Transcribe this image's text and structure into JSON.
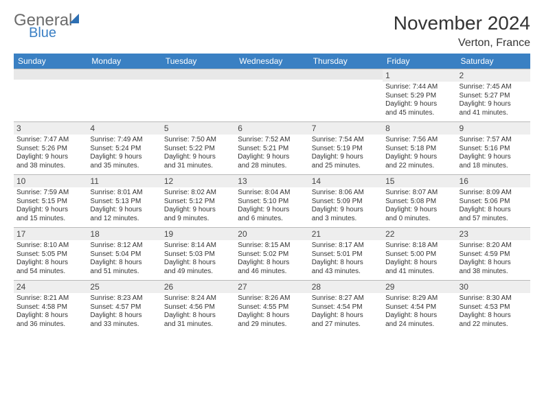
{
  "logo": {
    "line1": "General",
    "line2": "Blue"
  },
  "title": "November 2024",
  "location": "Verton, France",
  "day_headers": [
    "Sunday",
    "Monday",
    "Tuesday",
    "Wednesday",
    "Thursday",
    "Friday",
    "Saturday"
  ],
  "colors": {
    "header_bg": "#3a80c3",
    "header_text": "#ffffff",
    "daynum_bg": "#eeeeee",
    "border": "#b8b8b8",
    "text": "#333333",
    "logo_gray": "#6b6b6b",
    "logo_blue": "#3a7fc4"
  },
  "weeks": [
    [
      null,
      null,
      null,
      null,
      null,
      {
        "n": "1",
        "sr": "Sunrise: 7:44 AM",
        "ss": "Sunset: 5:29 PM",
        "d1": "Daylight: 9 hours",
        "d2": "and 45 minutes."
      },
      {
        "n": "2",
        "sr": "Sunrise: 7:45 AM",
        "ss": "Sunset: 5:27 PM",
        "d1": "Daylight: 9 hours",
        "d2": "and 41 minutes."
      }
    ],
    [
      {
        "n": "3",
        "sr": "Sunrise: 7:47 AM",
        "ss": "Sunset: 5:26 PM",
        "d1": "Daylight: 9 hours",
        "d2": "and 38 minutes."
      },
      {
        "n": "4",
        "sr": "Sunrise: 7:49 AM",
        "ss": "Sunset: 5:24 PM",
        "d1": "Daylight: 9 hours",
        "d2": "and 35 minutes."
      },
      {
        "n": "5",
        "sr": "Sunrise: 7:50 AM",
        "ss": "Sunset: 5:22 PM",
        "d1": "Daylight: 9 hours",
        "d2": "and 31 minutes."
      },
      {
        "n": "6",
        "sr": "Sunrise: 7:52 AM",
        "ss": "Sunset: 5:21 PM",
        "d1": "Daylight: 9 hours",
        "d2": "and 28 minutes."
      },
      {
        "n": "7",
        "sr": "Sunrise: 7:54 AM",
        "ss": "Sunset: 5:19 PM",
        "d1": "Daylight: 9 hours",
        "d2": "and 25 minutes."
      },
      {
        "n": "8",
        "sr": "Sunrise: 7:56 AM",
        "ss": "Sunset: 5:18 PM",
        "d1": "Daylight: 9 hours",
        "d2": "and 22 minutes."
      },
      {
        "n": "9",
        "sr": "Sunrise: 7:57 AM",
        "ss": "Sunset: 5:16 PM",
        "d1": "Daylight: 9 hours",
        "d2": "and 18 minutes."
      }
    ],
    [
      {
        "n": "10",
        "sr": "Sunrise: 7:59 AM",
        "ss": "Sunset: 5:15 PM",
        "d1": "Daylight: 9 hours",
        "d2": "and 15 minutes."
      },
      {
        "n": "11",
        "sr": "Sunrise: 8:01 AM",
        "ss": "Sunset: 5:13 PM",
        "d1": "Daylight: 9 hours",
        "d2": "and 12 minutes."
      },
      {
        "n": "12",
        "sr": "Sunrise: 8:02 AM",
        "ss": "Sunset: 5:12 PM",
        "d1": "Daylight: 9 hours",
        "d2": "and 9 minutes."
      },
      {
        "n": "13",
        "sr": "Sunrise: 8:04 AM",
        "ss": "Sunset: 5:10 PM",
        "d1": "Daylight: 9 hours",
        "d2": "and 6 minutes."
      },
      {
        "n": "14",
        "sr": "Sunrise: 8:06 AM",
        "ss": "Sunset: 5:09 PM",
        "d1": "Daylight: 9 hours",
        "d2": "and 3 minutes."
      },
      {
        "n": "15",
        "sr": "Sunrise: 8:07 AM",
        "ss": "Sunset: 5:08 PM",
        "d1": "Daylight: 9 hours",
        "d2": "and 0 minutes."
      },
      {
        "n": "16",
        "sr": "Sunrise: 8:09 AM",
        "ss": "Sunset: 5:06 PM",
        "d1": "Daylight: 8 hours",
        "d2": "and 57 minutes."
      }
    ],
    [
      {
        "n": "17",
        "sr": "Sunrise: 8:10 AM",
        "ss": "Sunset: 5:05 PM",
        "d1": "Daylight: 8 hours",
        "d2": "and 54 minutes."
      },
      {
        "n": "18",
        "sr": "Sunrise: 8:12 AM",
        "ss": "Sunset: 5:04 PM",
        "d1": "Daylight: 8 hours",
        "d2": "and 51 minutes."
      },
      {
        "n": "19",
        "sr": "Sunrise: 8:14 AM",
        "ss": "Sunset: 5:03 PM",
        "d1": "Daylight: 8 hours",
        "d2": "and 49 minutes."
      },
      {
        "n": "20",
        "sr": "Sunrise: 8:15 AM",
        "ss": "Sunset: 5:02 PM",
        "d1": "Daylight: 8 hours",
        "d2": "and 46 minutes."
      },
      {
        "n": "21",
        "sr": "Sunrise: 8:17 AM",
        "ss": "Sunset: 5:01 PM",
        "d1": "Daylight: 8 hours",
        "d2": "and 43 minutes."
      },
      {
        "n": "22",
        "sr": "Sunrise: 8:18 AM",
        "ss": "Sunset: 5:00 PM",
        "d1": "Daylight: 8 hours",
        "d2": "and 41 minutes."
      },
      {
        "n": "23",
        "sr": "Sunrise: 8:20 AM",
        "ss": "Sunset: 4:59 PM",
        "d1": "Daylight: 8 hours",
        "d2": "and 38 minutes."
      }
    ],
    [
      {
        "n": "24",
        "sr": "Sunrise: 8:21 AM",
        "ss": "Sunset: 4:58 PM",
        "d1": "Daylight: 8 hours",
        "d2": "and 36 minutes."
      },
      {
        "n": "25",
        "sr": "Sunrise: 8:23 AM",
        "ss": "Sunset: 4:57 PM",
        "d1": "Daylight: 8 hours",
        "d2": "and 33 minutes."
      },
      {
        "n": "26",
        "sr": "Sunrise: 8:24 AM",
        "ss": "Sunset: 4:56 PM",
        "d1": "Daylight: 8 hours",
        "d2": "and 31 minutes."
      },
      {
        "n": "27",
        "sr": "Sunrise: 8:26 AM",
        "ss": "Sunset: 4:55 PM",
        "d1": "Daylight: 8 hours",
        "d2": "and 29 minutes."
      },
      {
        "n": "28",
        "sr": "Sunrise: 8:27 AM",
        "ss": "Sunset: 4:54 PM",
        "d1": "Daylight: 8 hours",
        "d2": "and 27 minutes."
      },
      {
        "n": "29",
        "sr": "Sunrise: 8:29 AM",
        "ss": "Sunset: 4:54 PM",
        "d1": "Daylight: 8 hours",
        "d2": "and 24 minutes."
      },
      {
        "n": "30",
        "sr": "Sunrise: 8:30 AM",
        "ss": "Sunset: 4:53 PM",
        "d1": "Daylight: 8 hours",
        "d2": "and 22 minutes."
      }
    ]
  ]
}
